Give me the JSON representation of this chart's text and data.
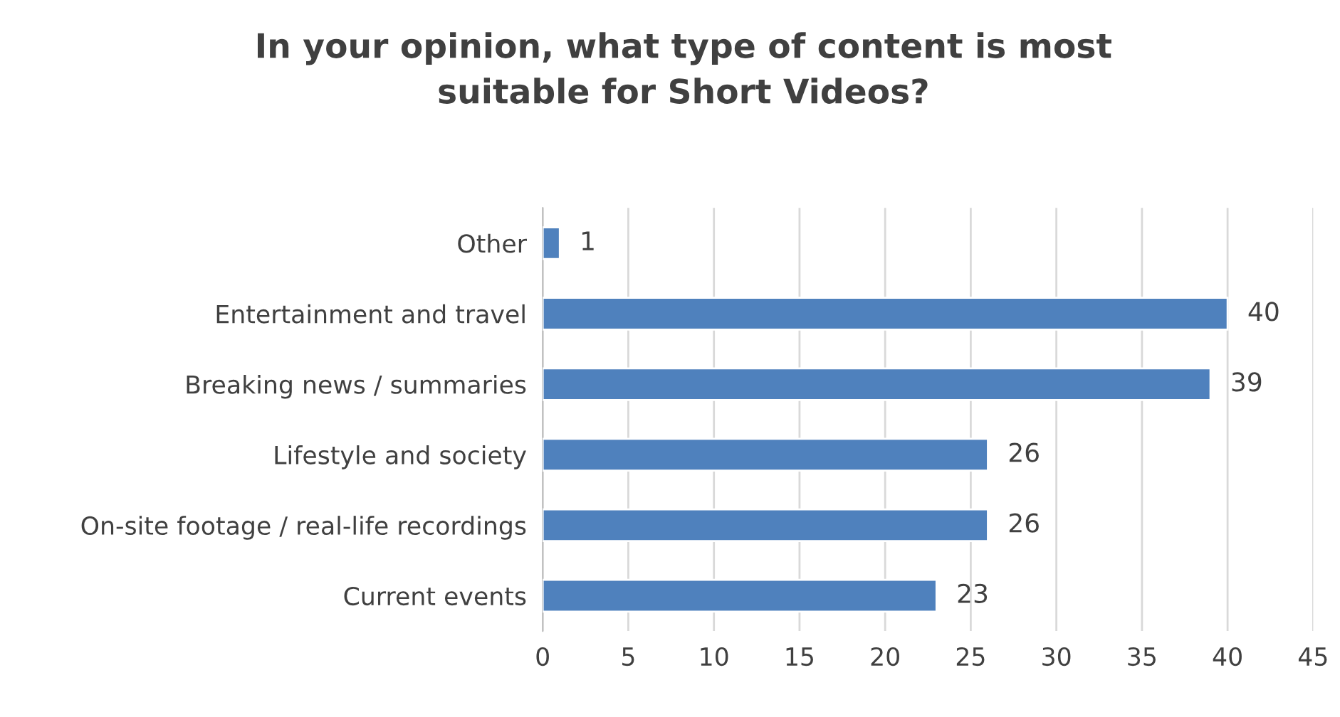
{
  "chart_data": {
    "type": "bar",
    "orientation": "horizontal",
    "title": "In your opinion, what type of content is most\nsuitable for Short Videos?",
    "categories": [
      "Other",
      "Entertainment and travel",
      "Breaking news / summaries",
      "Lifestyle and society",
      "On-site footage / real-life recordings",
      "Current events"
    ],
    "values": [
      1,
      40,
      39,
      26,
      26,
      23
    ],
    "color": "#4f81bd",
    "xlim": [
      0,
      45
    ],
    "xticks": [
      0,
      5,
      10,
      15,
      20,
      25,
      30,
      35,
      40,
      45
    ],
    "grid": "x",
    "data_labels": true,
    "legend": false
  }
}
